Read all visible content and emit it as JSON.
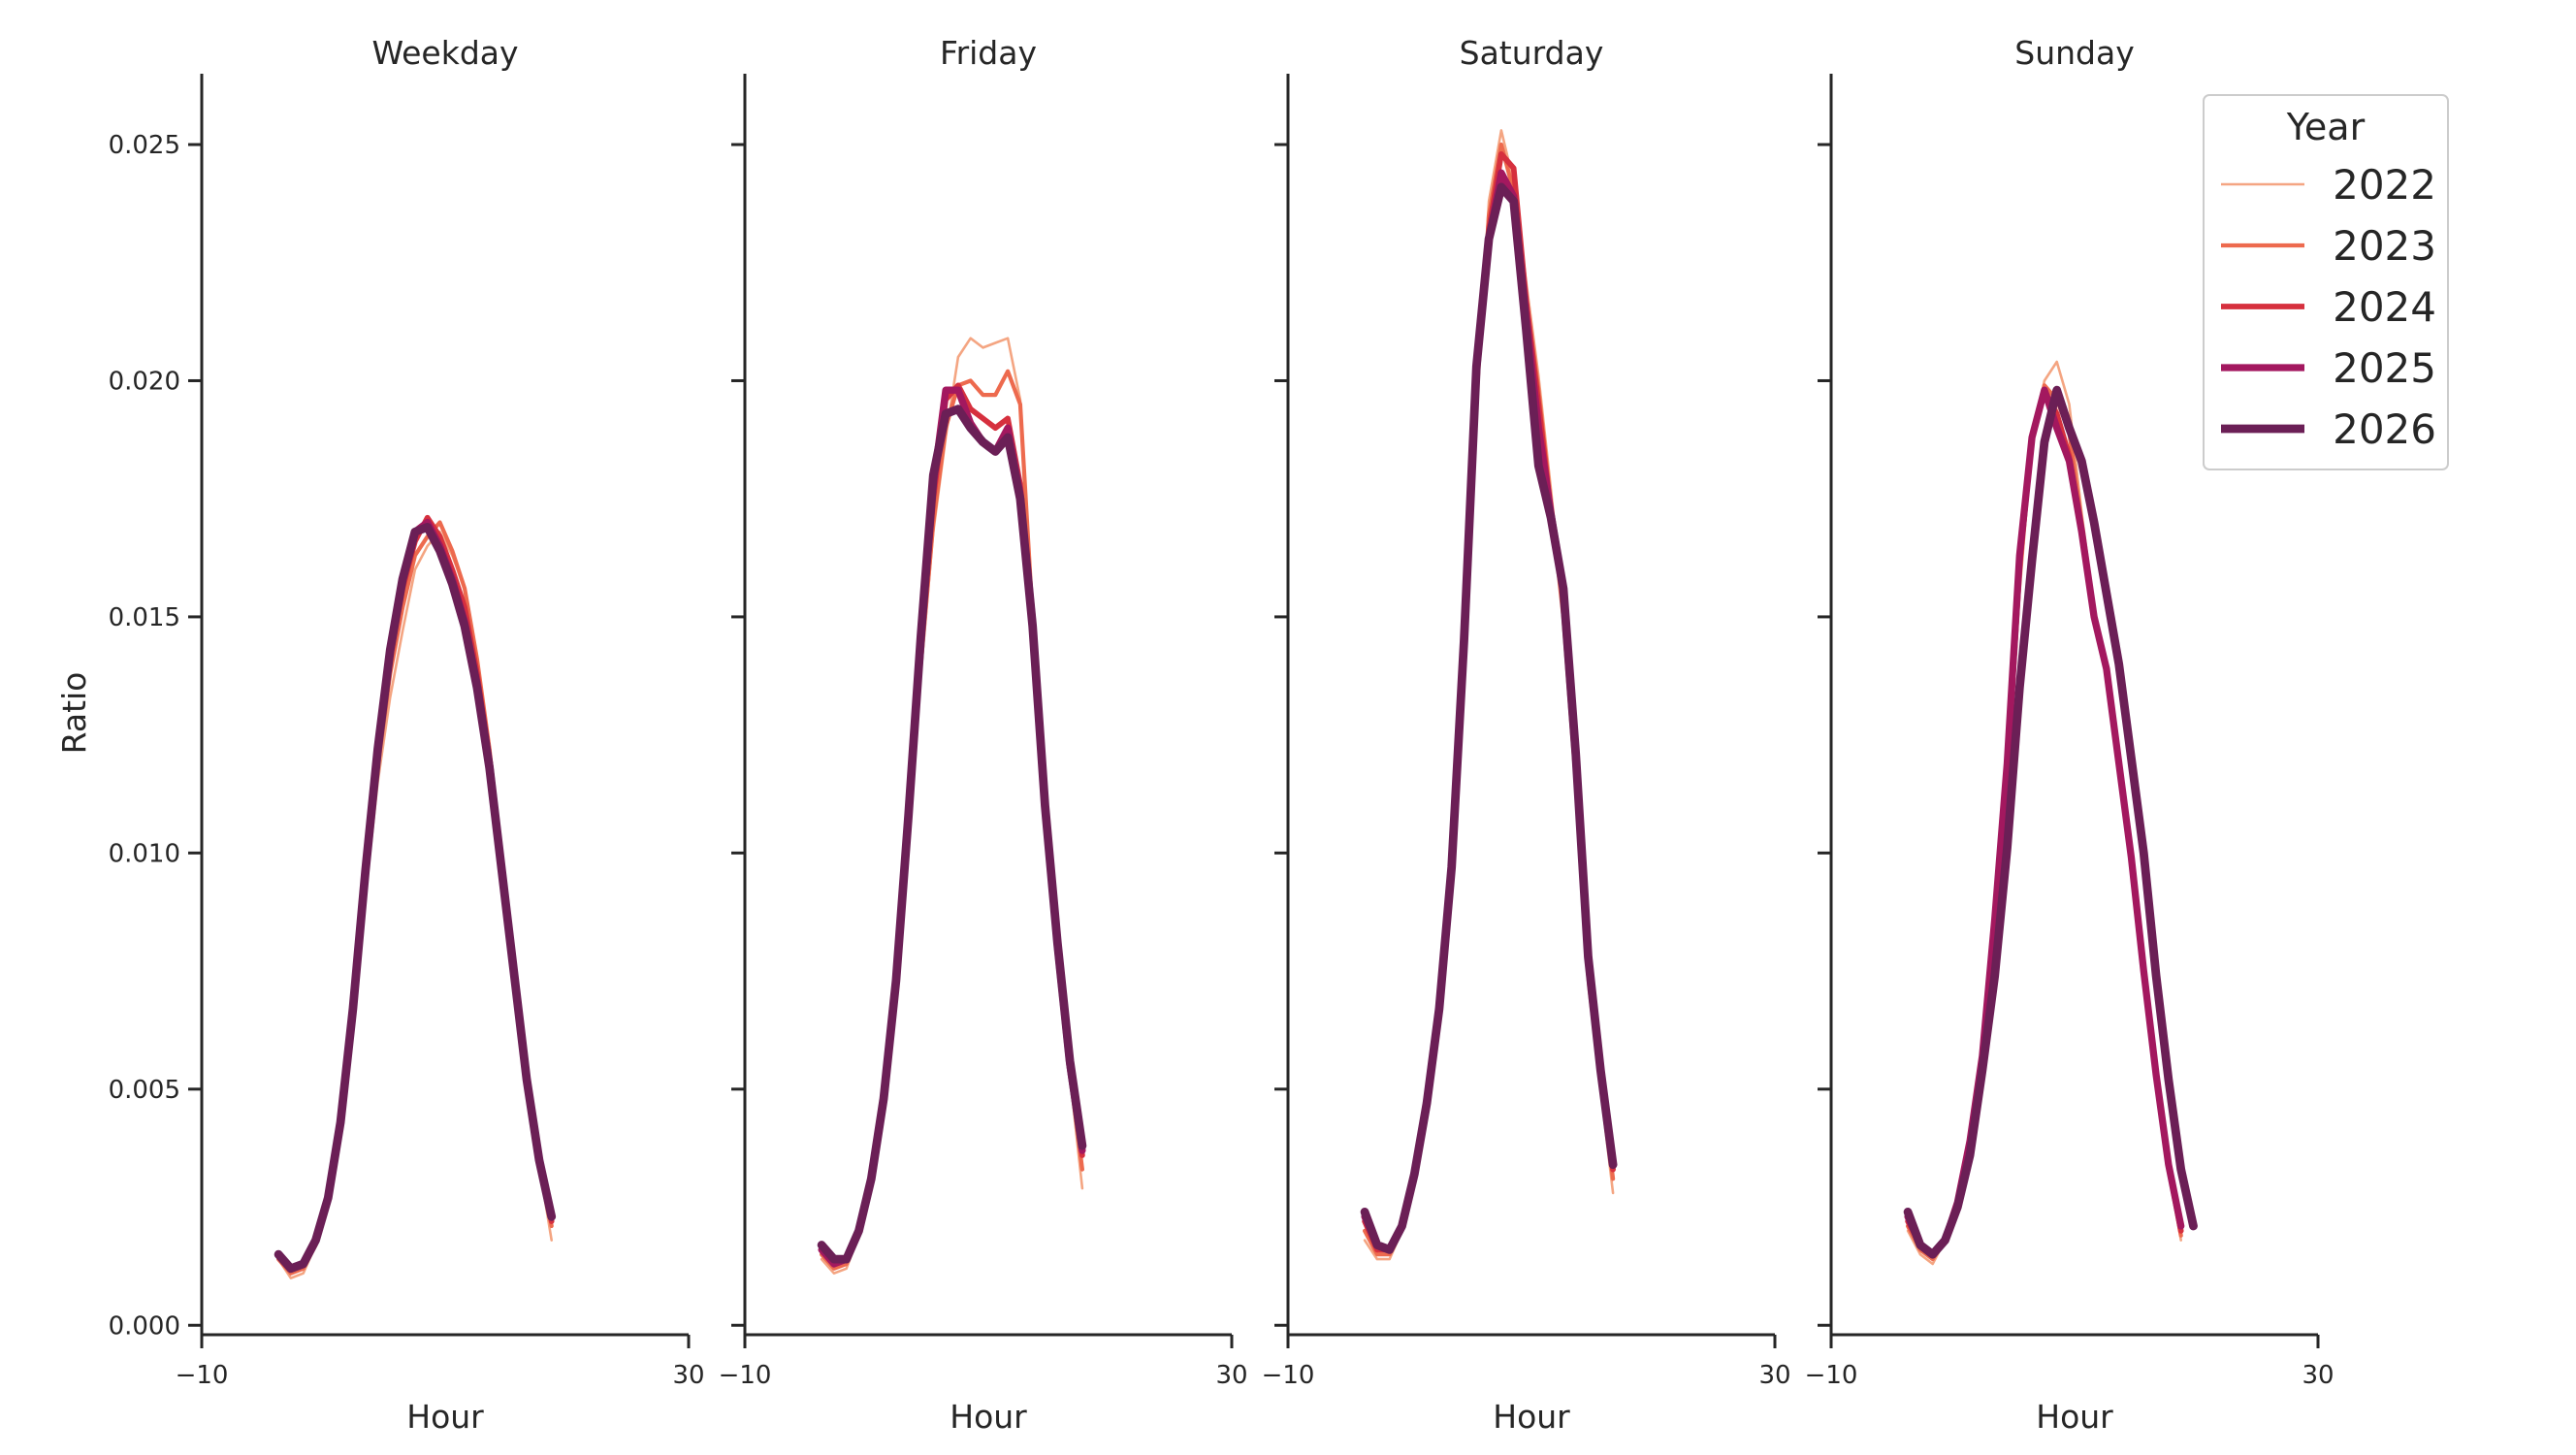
{
  "chart_data": {
    "type": "line",
    "ylabel": "Ratio",
    "xlabel": "Hour",
    "xlim": [
      -10,
      30
    ],
    "xticks": [
      "−10",
      "30"
    ],
    "ylim": [
      -0.0002,
      0.0265
    ],
    "yticks": [
      "0.000",
      "0.005",
      "0.010",
      "0.015",
      "0.020",
      "0.025"
    ],
    "ytick_values": [
      0.0,
      0.005,
      0.01,
      0.015,
      0.02,
      0.025
    ],
    "grid": false,
    "legend": {
      "title": "Year",
      "placement": "top-right",
      "entries": [
        "2022",
        "2023",
        "2024",
        "2025",
        "2026"
      ]
    },
    "series_styles": [
      {
        "name": "2022",
        "color": "#f4a582",
        "width": 1.0
      },
      {
        "name": "2023",
        "color": "#ed6a4e",
        "width": 1.6
      },
      {
        "name": "2024",
        "color": "#d6303e",
        "width": 2.2
      },
      {
        "name": "2025",
        "color": "#a3185f",
        "width": 2.8
      },
      {
        "name": "2026",
        "color": "#6b1f56",
        "width": 3.4
      }
    ],
    "x": [
      0,
      1,
      2,
      3,
      4,
      5,
      6,
      7,
      8,
      9,
      10,
      11,
      12,
      13,
      14,
      15,
      16,
      17,
      18,
      19,
      20,
      21,
      22,
      23
    ],
    "panels": [
      {
        "title": "Weekday",
        "series": [
          {
            "name": "2022",
            "values": [
              0.0014,
              0.001,
              0.0011,
              0.0017,
              0.0027,
              0.0042,
              0.0065,
              0.0091,
              0.0115,
              0.0133,
              0.0147,
              0.016,
              0.0165,
              0.0168,
              0.0163,
              0.0156,
              0.014,
              0.012,
              0.0097,
              0.0074,
              0.0051,
              0.0034,
              0.0018,
              0.0
            ]
          },
          {
            "name": "2023",
            "values": [
              0.0014,
              0.0011,
              0.0012,
              0.0017,
              0.0027,
              0.0042,
              0.0066,
              0.0093,
              0.0118,
              0.0138,
              0.0152,
              0.0163,
              0.0167,
              0.017,
              0.0164,
              0.0156,
              0.0141,
              0.0122,
              0.0098,
              0.0075,
              0.0052,
              0.0035,
              0.0021,
              0.0
            ]
          },
          {
            "name": "2024",
            "values": [
              0.0015,
              0.0012,
              0.0013,
              0.0018,
              0.0027,
              0.0043,
              0.0067,
              0.0095,
              0.0121,
              0.0141,
              0.0156,
              0.0166,
              0.0171,
              0.0167,
              0.016,
              0.0152,
              0.0138,
              0.012,
              0.0097,
              0.0074,
              0.0052,
              0.0035,
              0.0022,
              0.0
            ]
          },
          {
            "name": "2025",
            "values": [
              0.0015,
              0.0012,
              0.0013,
              0.0018,
              0.0027,
              0.0043,
              0.0067,
              0.0096,
              0.0122,
              0.0143,
              0.0158,
              0.0168,
              0.017,
              0.0165,
              0.0158,
              0.0149,
              0.0136,
              0.0119,
              0.0096,
              0.0074,
              0.0052,
              0.0035,
              0.0023,
              0.0
            ]
          },
          {
            "name": "2026",
            "values": [
              0.0015,
              0.0012,
              0.0013,
              0.0018,
              0.0027,
              0.0043,
              0.0067,
              0.0096,
              0.0122,
              0.0143,
              0.0158,
              0.0168,
              0.0169,
              0.0164,
              0.0157,
              0.0148,
              0.0135,
              0.0118,
              0.0096,
              0.0074,
              0.0052,
              0.0035,
              0.0023,
              0.0
            ]
          }
        ]
      },
      {
        "title": "Friday",
        "series": [
          {
            "name": "2022",
            "values": [
              0.0014,
              0.0011,
              0.0012,
              0.0019,
              0.003,
              0.0047,
              0.0072,
              0.0104,
              0.0138,
              0.0168,
              0.0188,
              0.0205,
              0.0209,
              0.0207,
              0.0208,
              0.0209,
              0.0196,
              0.015,
              0.011,
              0.008,
              0.0053,
              0.0029,
              0.0,
              0.0
            ]
          },
          {
            "name": "2023",
            "values": [
              0.0015,
              0.0012,
              0.0013,
              0.0019,
              0.003,
              0.0047,
              0.0072,
              0.0105,
              0.014,
              0.017,
              0.019,
              0.0199,
              0.02,
              0.0197,
              0.0197,
              0.0202,
              0.0195,
              0.015,
              0.011,
              0.008,
              0.0054,
              0.0033,
              0.0,
              0.0
            ]
          },
          {
            "name": "2024",
            "values": [
              0.0016,
              0.0013,
              0.0014,
              0.002,
              0.0031,
              0.0048,
              0.0073,
              0.0107,
              0.0143,
              0.0175,
              0.0196,
              0.0199,
              0.0194,
              0.0192,
              0.019,
              0.0192,
              0.0178,
              0.0149,
              0.011,
              0.008,
              0.0055,
              0.0036,
              0.0,
              0.0
            ]
          },
          {
            "name": "2025",
            "values": [
              0.0016,
              0.0013,
              0.0014,
              0.002,
              0.0031,
              0.0048,
              0.0073,
              0.0108,
              0.0145,
              0.0178,
              0.0198,
              0.0198,
              0.0191,
              0.0187,
              0.0185,
              0.019,
              0.0176,
              0.0149,
              0.011,
              0.008,
              0.0055,
              0.0037,
              0.0,
              0.0
            ]
          },
          {
            "name": "2026",
            "values": [
              0.0017,
              0.0014,
              0.0014,
              0.002,
              0.0031,
              0.0048,
              0.0073,
              0.0108,
              0.0146,
              0.018,
              0.0193,
              0.0194,
              0.019,
              0.0187,
              0.0185,
              0.0188,
              0.0175,
              0.0148,
              0.011,
              0.0081,
              0.0056,
              0.0038,
              0.0,
              0.0
            ]
          }
        ]
      },
      {
        "title": "Saturday",
        "series": [
          {
            "name": "2022",
            "values": [
              0.0018,
              0.0014,
              0.0014,
              0.002,
              0.0031,
              0.0047,
              0.0067,
              0.0097,
              0.014,
              0.0193,
              0.0238,
              0.0253,
              0.0242,
              0.0221,
              0.0201,
              0.0177,
              0.0152,
              0.0116,
              0.0072,
              0.005,
              0.0028,
              0.0,
              0.0,
              0.0
            ]
          },
          {
            "name": "2023",
            "values": [
              0.002,
              0.0015,
              0.0015,
              0.0021,
              0.0031,
              0.0047,
              0.0067,
              0.0097,
              0.0142,
              0.0196,
              0.0235,
              0.025,
              0.024,
              0.0218,
              0.0198,
              0.0174,
              0.015,
              0.0115,
              0.0074,
              0.0052,
              0.0031,
              0.0,
              0.0,
              0.0
            ]
          },
          {
            "name": "2024",
            "values": [
              0.0022,
              0.0016,
              0.0016,
              0.0021,
              0.0032,
              0.0047,
              0.0067,
              0.0097,
              0.0143,
              0.02,
              0.0232,
              0.0248,
              0.0245,
              0.0217,
              0.0195,
              0.0172,
              0.0155,
              0.012,
              0.0077,
              0.0053,
              0.0033,
              0.0,
              0.0,
              0.0
            ]
          },
          {
            "name": "2025",
            "values": [
              0.0023,
              0.0017,
              0.0016,
              0.0021,
              0.0032,
              0.0047,
              0.0067,
              0.0097,
              0.0144,
              0.0202,
              0.023,
              0.0244,
              0.0239,
              0.0214,
              0.019,
              0.0172,
              0.0156,
              0.0122,
              0.0078,
              0.0054,
              0.0034,
              0.0,
              0.0,
              0.0
            ]
          },
          {
            "name": "2026",
            "values": [
              0.0024,
              0.0017,
              0.0016,
              0.0021,
              0.0032,
              0.0047,
              0.0067,
              0.0097,
              0.0145,
              0.0203,
              0.023,
              0.0241,
              0.0238,
              0.0211,
              0.0182,
              0.0171,
              0.0156,
              0.0121,
              0.0078,
              0.0054,
              0.0034,
              0.0,
              0.0,
              0.0
            ]
          }
        ]
      },
      {
        "title": "Sunday",
        "series": [
          {
            "name": "2022",
            "values": [
              0.002,
              0.0015,
              0.0013,
              0.0018,
              0.0026,
              0.0039,
              0.0057,
              0.0083,
              0.0113,
              0.0155,
              0.0187,
              0.02,
              0.0204,
              0.0195,
              0.0172,
              0.0152,
              0.014,
              0.012,
              0.0099,
              0.0075,
              0.0053,
              0.0033,
              0.0018,
              0.0
            ]
          },
          {
            "name": "2023",
            "values": [
              0.0021,
              0.0016,
              0.0014,
              0.0018,
              0.0026,
              0.0039,
              0.0057,
              0.0084,
              0.0115,
              0.0158,
              0.0188,
              0.0199,
              0.0196,
              0.0189,
              0.017,
              0.0151,
              0.0139,
              0.0119,
              0.0099,
              0.0075,
              0.0053,
              0.0033,
              0.0019,
              0.0
            ]
          },
          {
            "name": "2024",
            "values": [
              0.0022,
              0.0017,
              0.0015,
              0.0018,
              0.0026,
              0.0039,
              0.0057,
              0.0085,
              0.0117,
              0.0161,
              0.0188,
              0.0198,
              0.0193,
              0.0184,
              0.0168,
              0.015,
              0.0139,
              0.0119,
              0.0099,
              0.0075,
              0.0053,
              0.0034,
              0.002,
              0.0
            ]
          },
          {
            "name": "2025",
            "values": [
              0.0023,
              0.0017,
              0.0015,
              0.0018,
              0.0026,
              0.0039,
              0.0057,
              0.0086,
              0.0119,
              0.0163,
              0.0188,
              0.0198,
              0.019,
              0.0183,
              0.0168,
              0.015,
              0.0139,
              0.0119,
              0.0099,
              0.0075,
              0.0053,
              0.0034,
              0.0021,
              0.0
            ]
          },
          {
            "name": "2026",
            "values": [
              0.0024,
              0.0017,
              0.0015,
              0.0018,
              0.0025,
              0.0036,
              0.0054,
              0.0074,
              0.0101,
              0.0135,
              0.0162,
              0.0187,
              0.0198,
              0.019,
              0.0183,
              0.017,
              0.0155,
              0.014,
              0.012,
              0.01,
              0.0074,
              0.0052,
              0.0033,
              0.0021
            ]
          }
        ]
      }
    ]
  }
}
